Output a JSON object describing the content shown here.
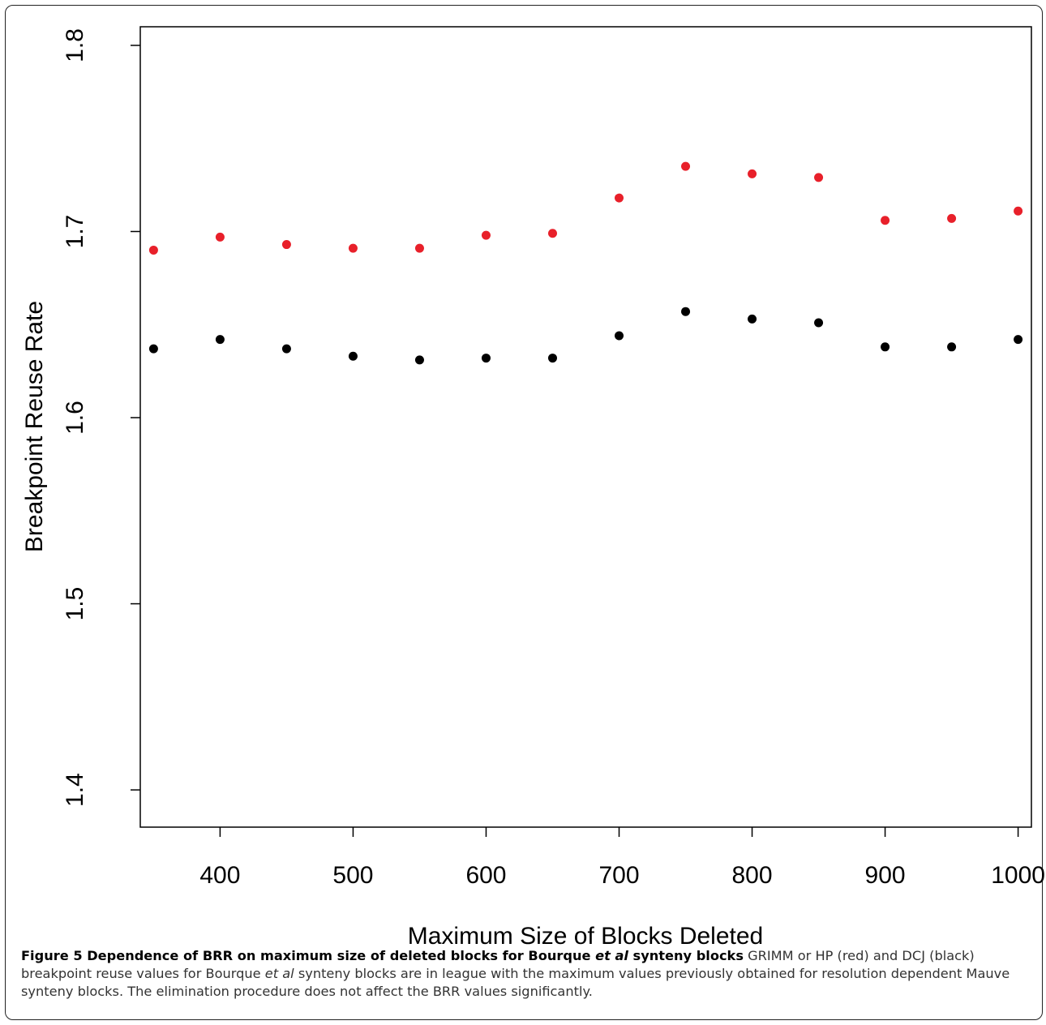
{
  "chart_data": {
    "type": "scatter",
    "xlabel": "Maximum Size of Blocks Deleted",
    "ylabel": "Breakpoint Reuse Rate",
    "xlim": [
      340,
      1010
    ],
    "ylim": [
      1.38,
      1.81
    ],
    "xticks": [
      400,
      500,
      600,
      700,
      800,
      900,
      1000
    ],
    "yticks": [
      1.4,
      1.5,
      1.6,
      1.7,
      1.8
    ],
    "xtick_labels": [
      "400",
      "500",
      "600",
      "700",
      "800",
      "900",
      "1000"
    ],
    "ytick_labels": [
      "1.4",
      "1.5",
      "1.6",
      "1.7",
      "1.8"
    ],
    "x": [
      350,
      400,
      450,
      500,
      550,
      600,
      650,
      700,
      750,
      800,
      850,
      900,
      950,
      1000
    ],
    "series": [
      {
        "color": "#e8202a",
        "values": [
          1.69,
          1.697,
          1.693,
          1.691,
          1.691,
          1.698,
          1.699,
          1.718,
          1.735,
          1.731,
          1.729,
          1.706,
          1.707,
          1.711
        ]
      },
      {
        "color": "#000000",
        "values": [
          1.637,
          1.642,
          1.637,
          1.633,
          1.631,
          1.632,
          1.632,
          1.644,
          1.657,
          1.653,
          1.651,
          1.638,
          1.638,
          1.642
        ]
      }
    ],
    "grid": false,
    "legend": "none"
  },
  "caption": {
    "label_part1": "Figure 5 Dependence of BRR on maximum size of deleted blocks for Bourque ",
    "label_italic": "et al",
    "label_part2": " synteny blocks",
    "text_part1": " GRIMM or HP (red) and DCJ (black) breakpoint reuse values for Bourque ",
    "text_italic": "et al",
    "text_part2": " synteny blocks are in league with the maximum values previously obtained for resolution dependent Mauve synteny blocks. The elimination procedure does not affect the BRR values significantly."
  }
}
